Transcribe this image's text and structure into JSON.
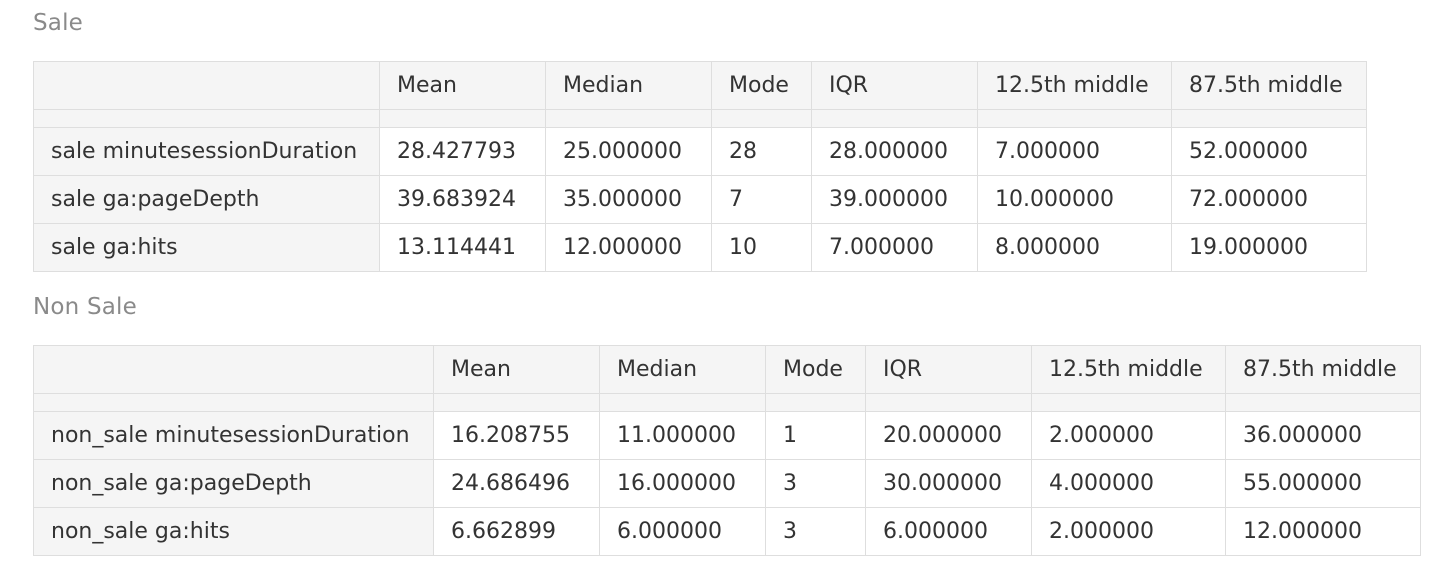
{
  "tables": [
    {
      "title": "Sale",
      "columns": [
        "",
        "Mean",
        "Median",
        "Mode",
        "IQR",
        "12.5th middle",
        "87.5th middle"
      ],
      "rows": [
        [
          "sale minutesessionDuration",
          "28.427793",
          "25.000000",
          "28",
          "28.000000",
          "7.000000",
          "52.000000"
        ],
        [
          "sale ga:pageDepth",
          "39.683924",
          "35.000000",
          "7",
          "39.000000",
          "10.000000",
          "72.000000"
        ],
        [
          "sale ga:hits",
          "13.114441",
          "12.000000",
          "10",
          "7.000000",
          "8.000000",
          "19.000000"
        ]
      ]
    },
    {
      "title": "Non Sale",
      "columns": [
        "",
        "Mean",
        "Median",
        "Mode",
        "IQR",
        "12.5th middle",
        "87.5th middle"
      ],
      "rows": [
        [
          "non_sale minutesessionDuration",
          "16.208755",
          "11.000000",
          "1",
          "20.000000",
          "2.000000",
          "36.000000"
        ],
        [
          "non_sale ga:pageDepth",
          "24.686496",
          "16.000000",
          "3",
          "30.000000",
          "4.000000",
          "55.000000"
        ],
        [
          "non_sale ga:hits",
          "6.662899",
          "6.000000",
          "3",
          "6.000000",
          "2.000000",
          "12.000000"
        ]
      ]
    }
  ]
}
